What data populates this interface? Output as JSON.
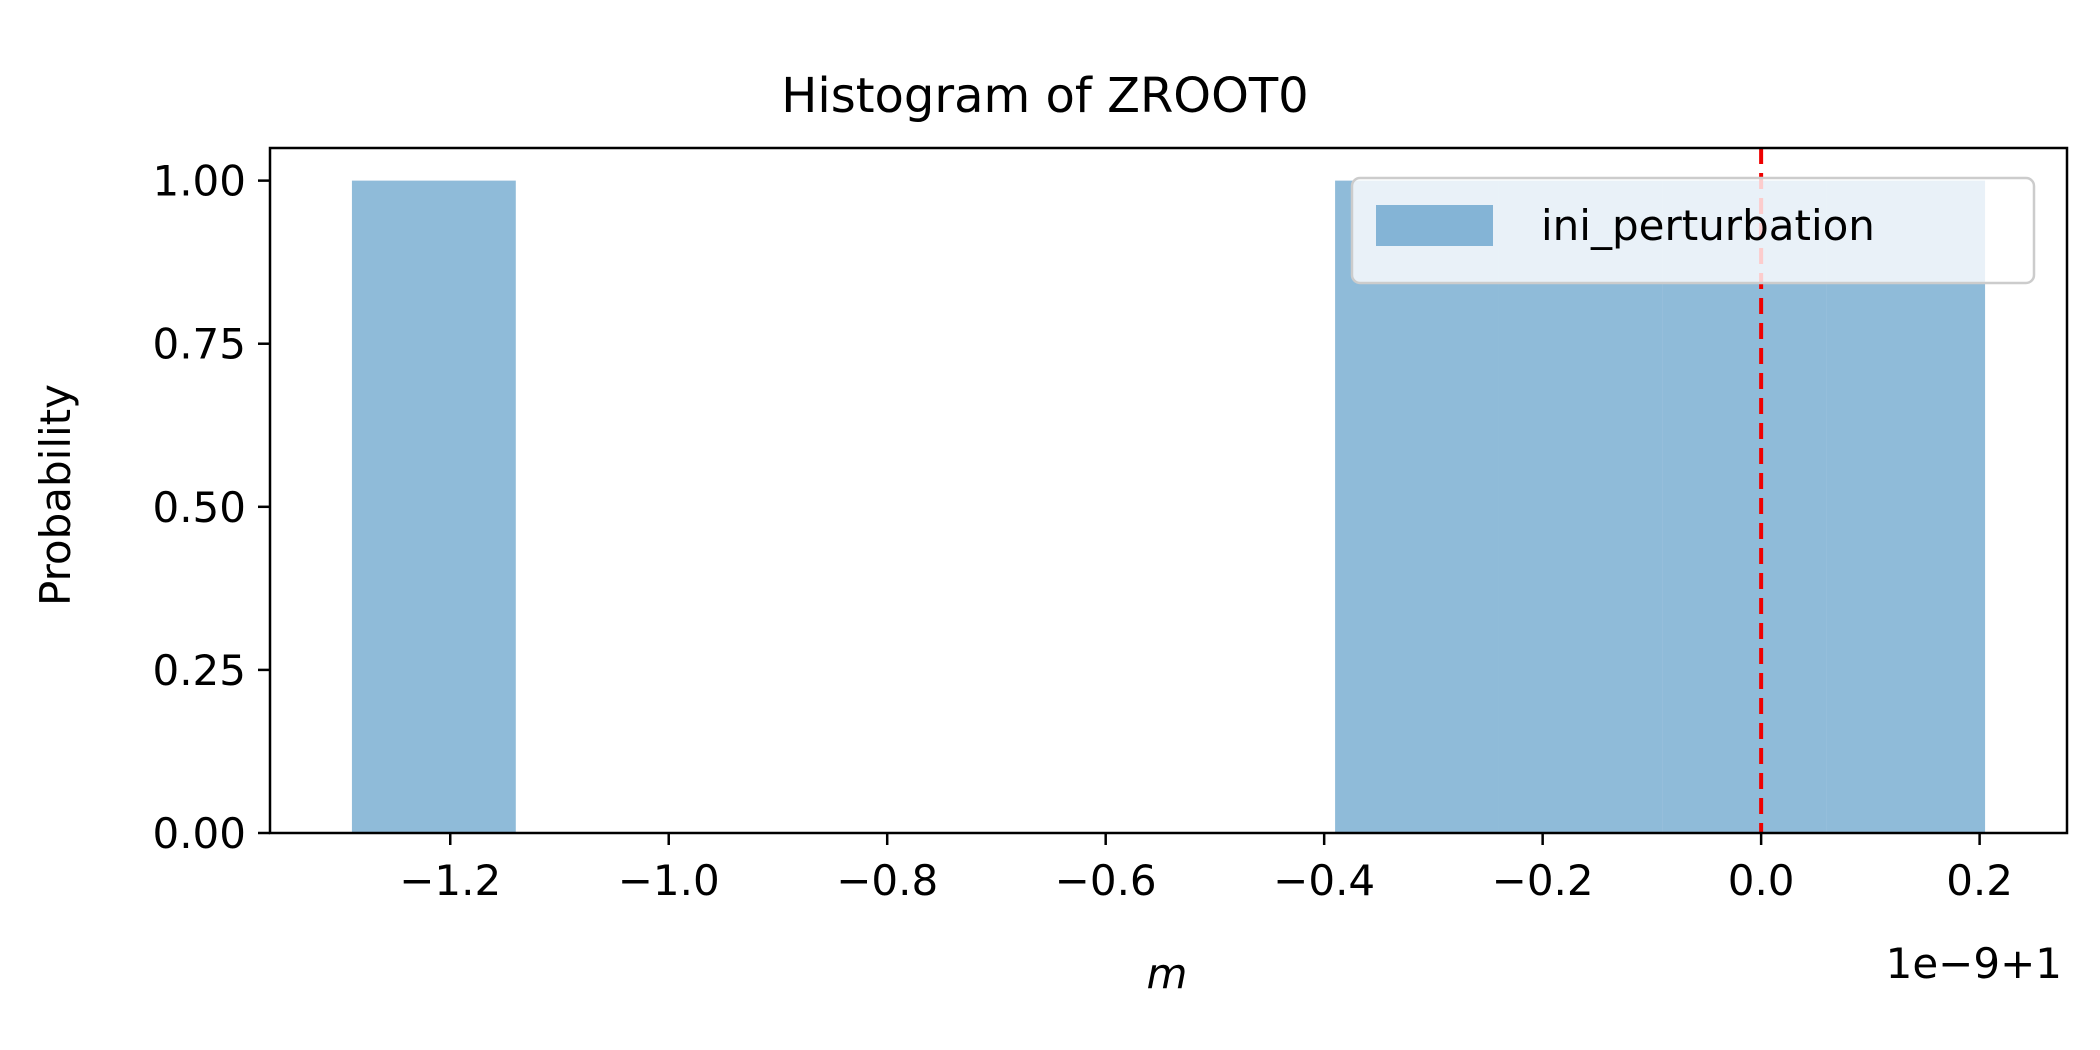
{
  "chart_data": {
    "type": "bar",
    "title": "Histogram of ZROOT0",
    "xlabel": "m",
    "ylabel": "Probability",
    "offset_label": "1e−9+1",
    "x_ticks": [
      -1.2,
      -1.0,
      -0.8,
      -0.6,
      -0.4,
      -0.2,
      0.0,
      0.2
    ],
    "x_tick_labels": [
      "−1.2",
      "−1.0",
      "−0.8",
      "−0.6",
      "−0.4",
      "−0.2",
      "0.0",
      "0.2"
    ],
    "y_ticks": [
      0,
      0.25,
      0.5,
      0.75,
      1.0
    ],
    "y_tick_labels": [
      "0.00",
      "0.25",
      "0.50",
      "0.75",
      "1.00"
    ],
    "xlim": [
      -1.365,
      0.28
    ],
    "ylim": [
      0,
      1.05
    ],
    "bars": [
      {
        "x0": -1.29,
        "x1": -1.14,
        "value": 1.0
      },
      {
        "x0": -0.39,
        "x1": -0.24,
        "value": 1.0
      },
      {
        "x0": -0.24,
        "x1": -0.09,
        "value": 1.0
      },
      {
        "x0": -0.09,
        "x1": 0.06,
        "value": 1.0
      },
      {
        "x0": 0.06,
        "x1": 0.205,
        "value": 1.0
      }
    ],
    "reference_line": {
      "x": 0.0,
      "color": "#ee0000",
      "style": "dashed"
    },
    "series": [
      {
        "name": "ini_perturbation",
        "color": "#1f77b4",
        "alpha": 0.5
      }
    ],
    "legend_position": "top-right",
    "grid": false
  }
}
